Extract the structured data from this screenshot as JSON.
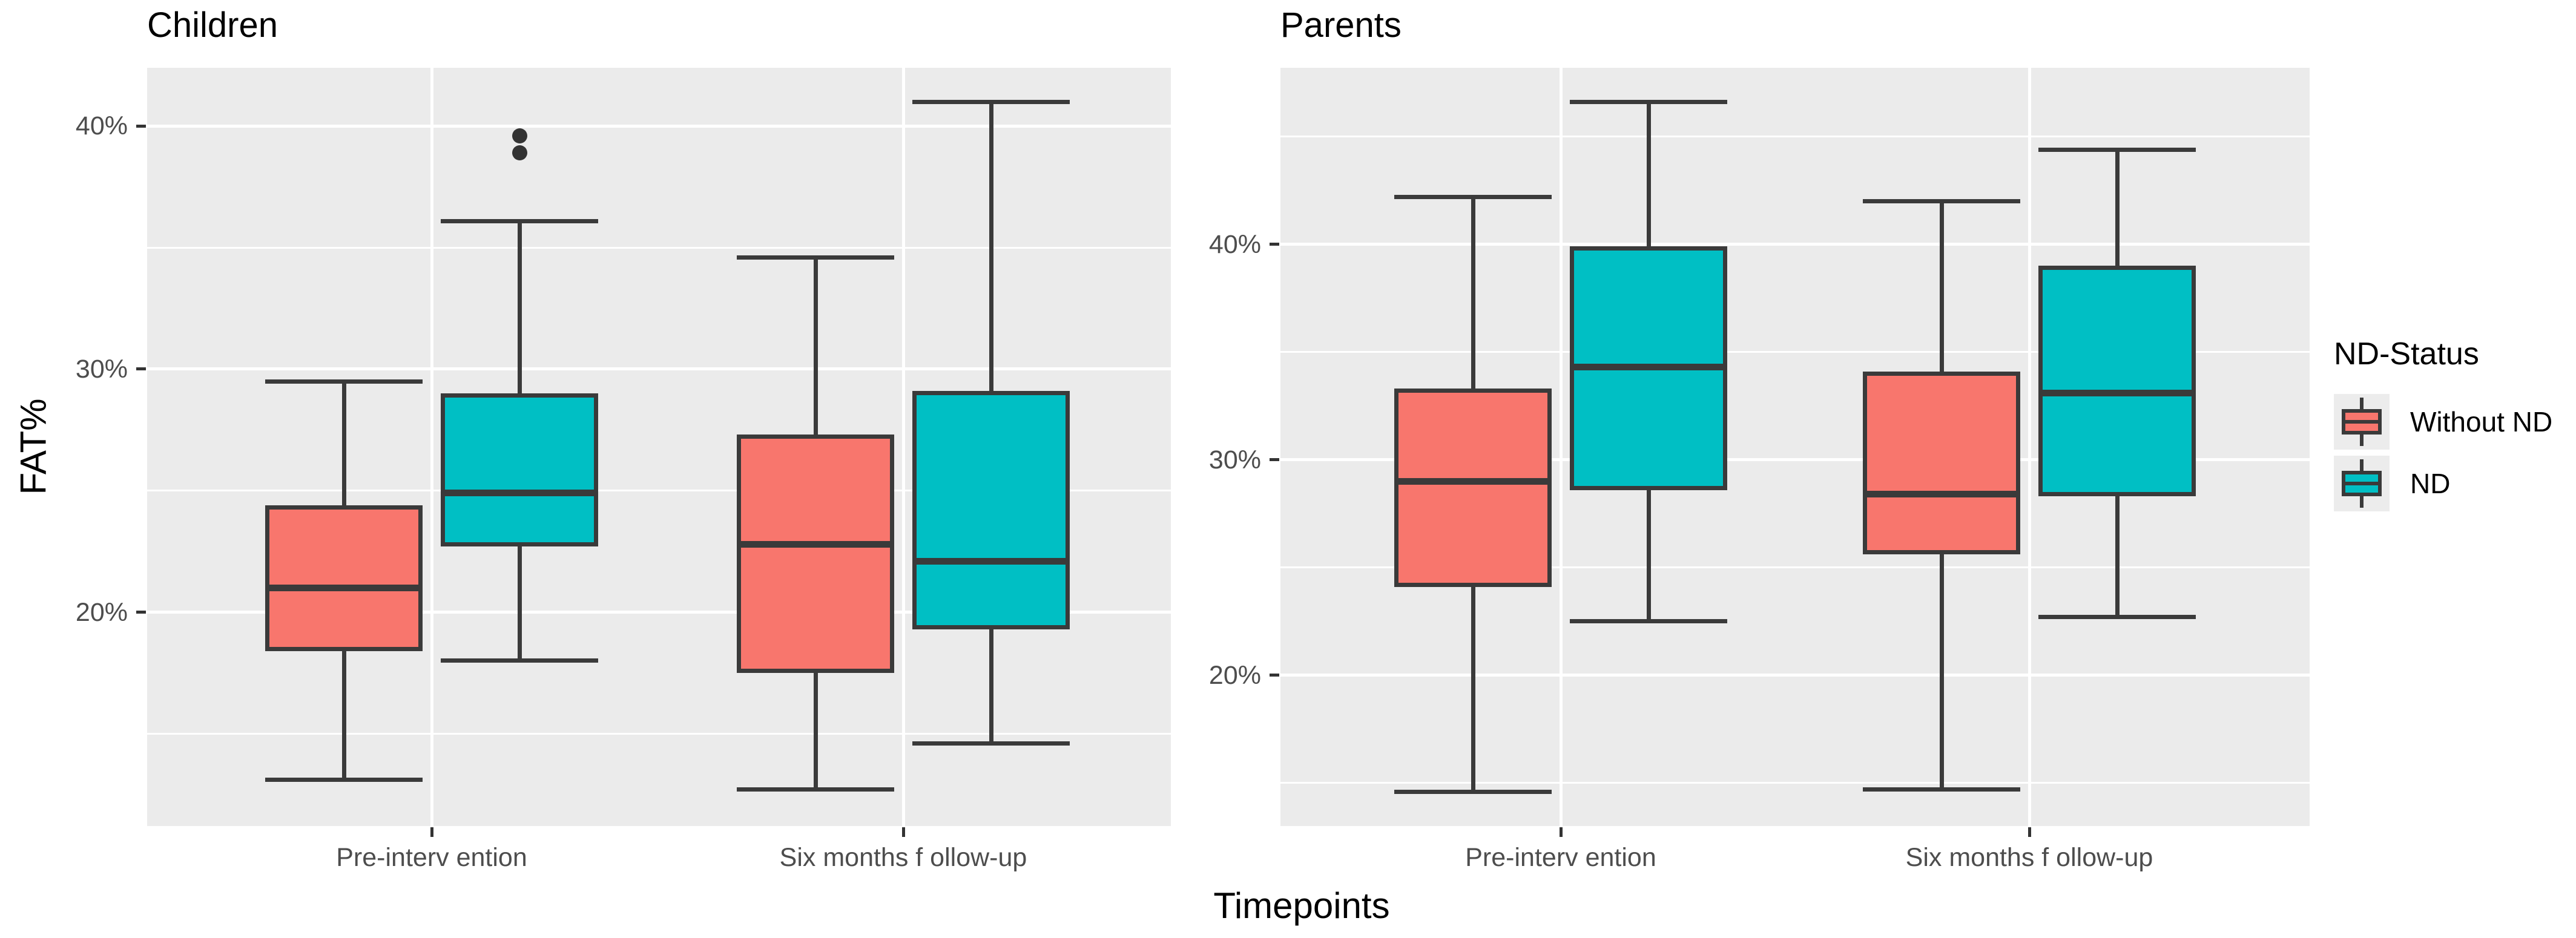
{
  "figure": {
    "ylabel": "FAT%",
    "xlabel": "Timepoints"
  },
  "legend": {
    "title": "ND-Status",
    "entries": [
      {
        "label": "Without ND",
        "color": "#F8766D"
      },
      {
        "label": "ND",
        "color": "#00BFC4"
      }
    ]
  },
  "chart_data": {
    "type": "boxplot",
    "xlabel": "Timepoints",
    "ylabel": "FAT%",
    "categories": [
      "Pre-interv ention",
      "Six months f ollow-up"
    ],
    "series": [
      "Without ND",
      "ND"
    ],
    "colors": {
      "Without ND": "#F8766D",
      "ND": "#00BFC4"
    },
    "legend_title": "ND-Status",
    "legend_position": "right",
    "grid": true,
    "style": {
      "panel_bg": "#EBEBEB",
      "grid_color": "#FFFFFF",
      "box_border": "#3A3A3A",
      "tick_text": "#4D4D4D",
      "title_text": "#000000",
      "legend_key_bg": "#ECECEC",
      "outlier_color": "#333333"
    },
    "facets": [
      {
        "title": "Children",
        "ylim": [
          11.2,
          42.4
        ],
        "yticks": [
          {
            "value": 40,
            "label": "40%"
          },
          {
            "value": 30,
            "label": "30%"
          },
          {
            "value": 20,
            "label": "20%"
          }
        ],
        "yminor": [
          35,
          25,
          15
        ],
        "boxes": [
          {
            "category": "Pre-interv ention",
            "series": "Without ND",
            "min": 13.1,
            "q1": 18.4,
            "median": 21.0,
            "q3": 24.4,
            "max": 29.5,
            "outliers": []
          },
          {
            "category": "Pre-interv ention",
            "series": "ND",
            "min": 18.0,
            "q1": 22.7,
            "median": 24.9,
            "q3": 29.0,
            "max": 36.1,
            "outliers": [
              38.9,
              39.6
            ]
          },
          {
            "category": "Six months f ollow-up",
            "series": "Without ND",
            "min": 12.7,
            "q1": 17.5,
            "median": 22.8,
            "q3": 27.3,
            "max": 34.6,
            "outliers": []
          },
          {
            "category": "Six months f ollow-up",
            "series": "ND",
            "min": 14.6,
            "q1": 19.3,
            "median": 22.1,
            "q3": 29.1,
            "max": 41.0,
            "outliers": []
          }
        ]
      },
      {
        "title": "Parents",
        "ylim": [
          13.0,
          48.2
        ],
        "yticks": [
          {
            "value": 40,
            "label": "40%"
          },
          {
            "value": 30,
            "label": "30%"
          },
          {
            "value": 20,
            "label": "20%"
          }
        ],
        "yminor": [
          45,
          35,
          25,
          15
        ],
        "boxes": [
          {
            "category": "Pre-interv ention",
            "series": "Without ND",
            "min": 14.6,
            "q1": 24.1,
            "median": 29.0,
            "q3": 33.3,
            "max": 42.2,
            "outliers": []
          },
          {
            "category": "Pre-interv ention",
            "series": "ND",
            "min": 22.5,
            "q1": 28.6,
            "median": 34.3,
            "q3": 39.9,
            "max": 46.6,
            "outliers": []
          },
          {
            "category": "Six months f ollow-up",
            "series": "Without ND",
            "min": 14.7,
            "q1": 25.6,
            "median": 28.4,
            "q3": 34.1,
            "max": 42.0,
            "outliers": []
          },
          {
            "category": "Six months f ollow-up",
            "series": "ND",
            "min": 22.7,
            "q1": 28.3,
            "median": 33.1,
            "q3": 39.0,
            "max": 44.4,
            "outliers": []
          }
        ]
      }
    ]
  }
}
